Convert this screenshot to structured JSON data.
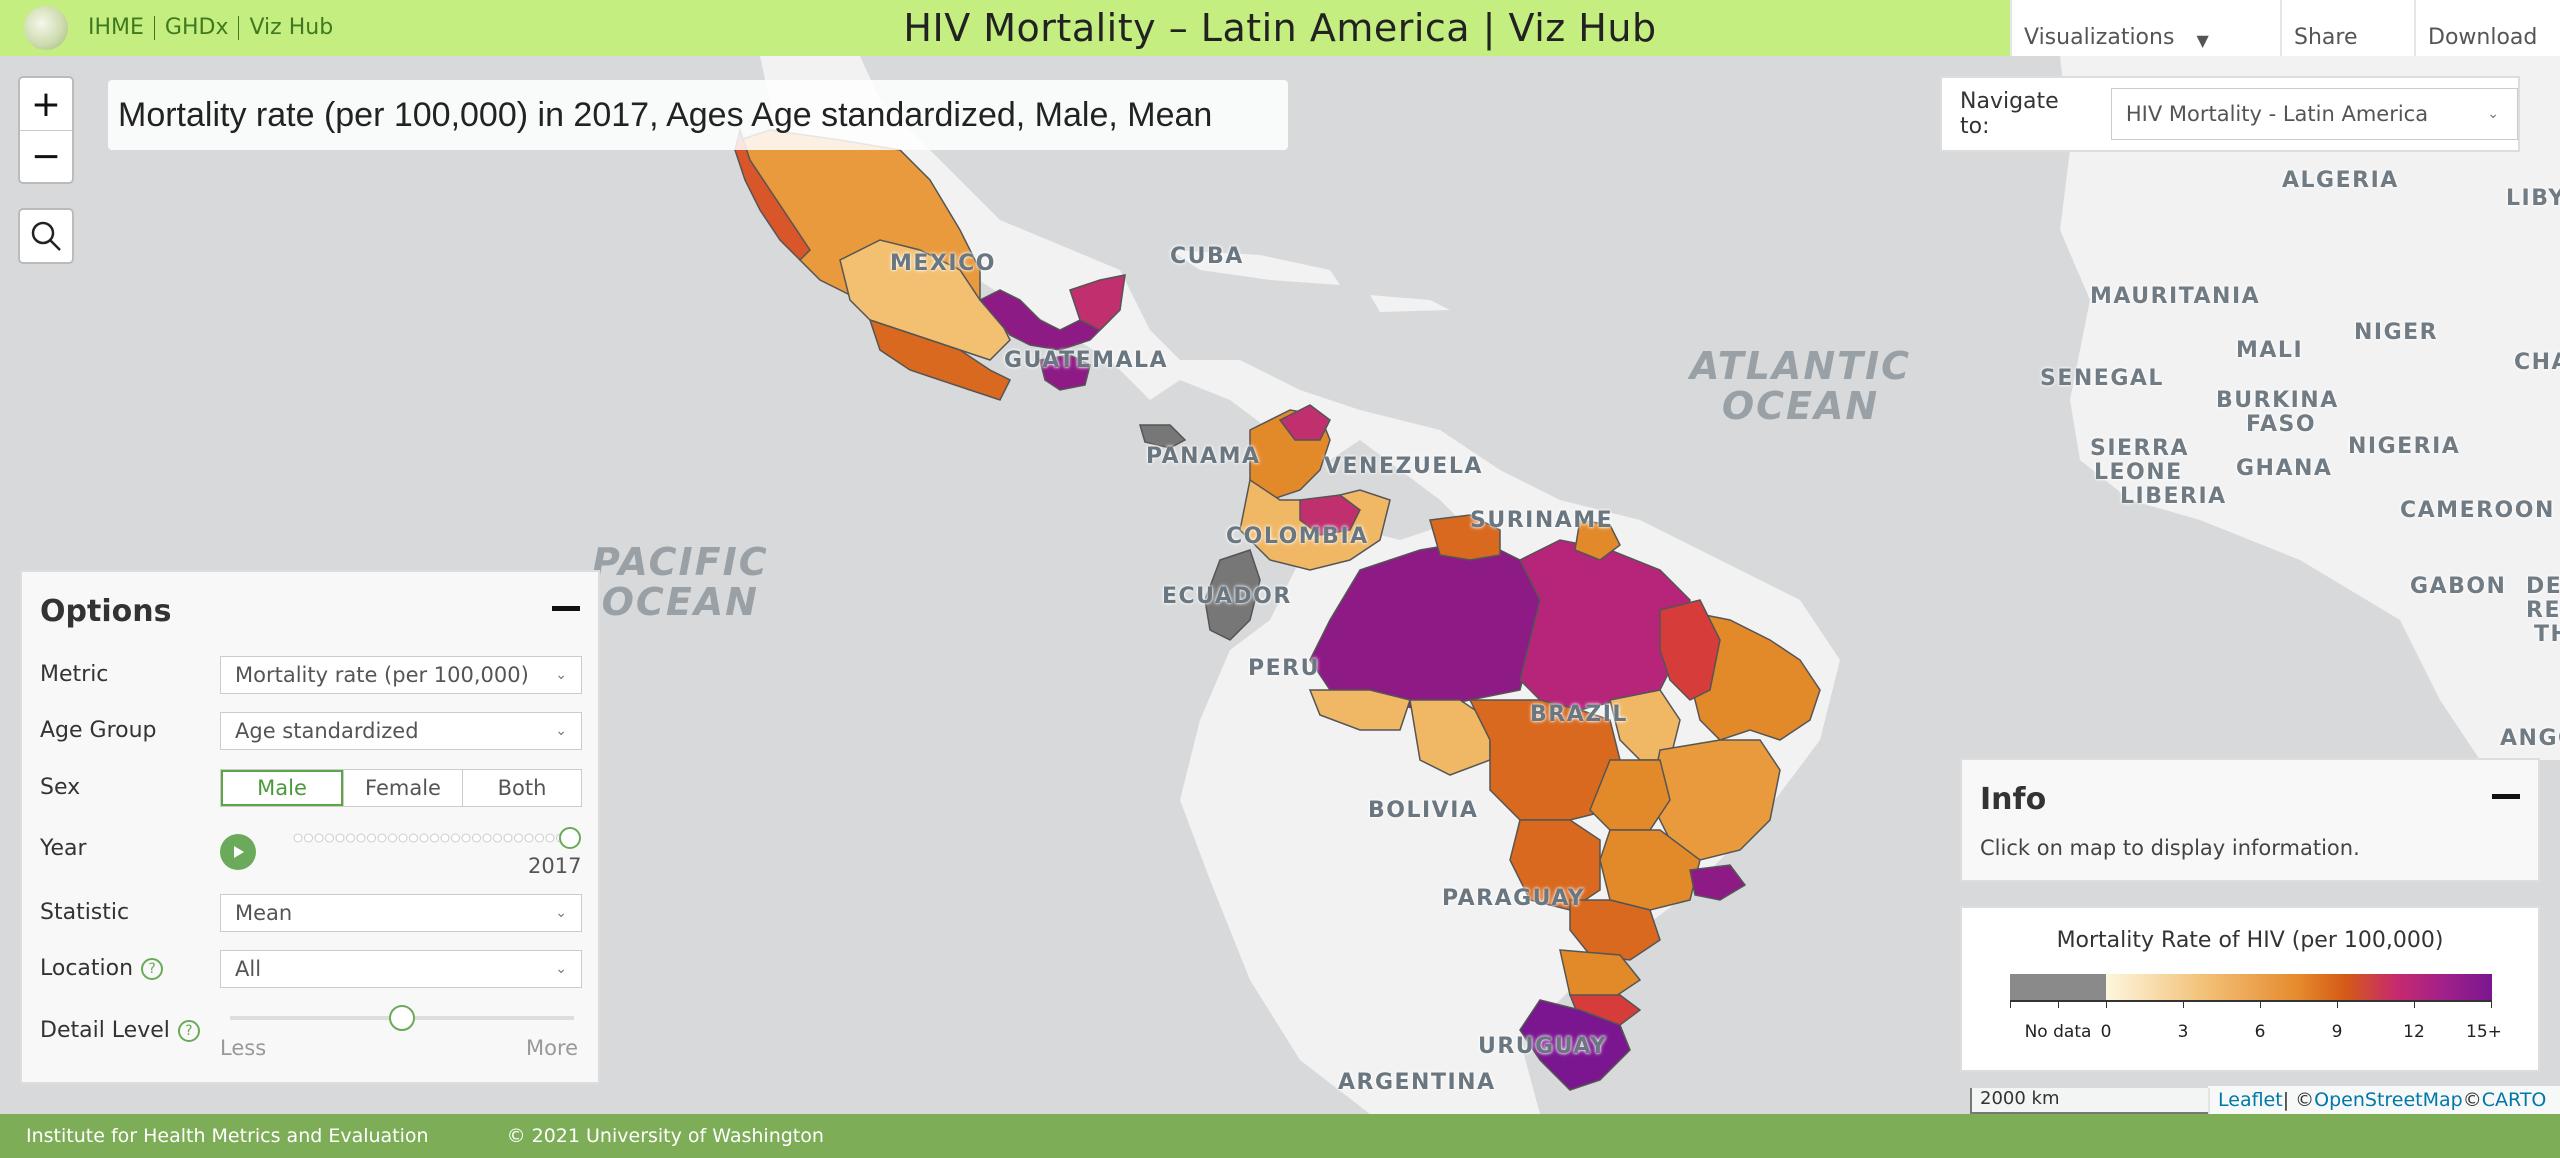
{
  "header": {
    "title": "HIV Mortality – Latin America | Viz Hub",
    "links": [
      "IHME",
      "GHDx",
      "Viz Hub"
    ],
    "visualizations_label": "Visualizations",
    "share_label": "Share",
    "download_label": "Download"
  },
  "map": {
    "title": "Mortality rate (per 100,000) in 2017, Ages Age standardized, Male, Mean",
    "zoom_in": "+",
    "zoom_out": "−",
    "country_labels": [
      "MEXICO",
      "CUBA",
      "GUATEMALA",
      "PANAMA",
      "VENEZUELA",
      "COLOMBIA",
      "SURINAME",
      "ECUADOR",
      "PERU",
      "BRAZIL",
      "BOLIVIA",
      "PARAGUAY",
      "URUGUAY",
      "ARGENTINA"
    ],
    "africa_labels": [
      "ALGERIA",
      "LIBY",
      "MAURITANIA",
      "MALI",
      "NIGER",
      "SENEGAL",
      "BURKINA",
      "FASO",
      "CHA",
      "SIERRA",
      "LEONE",
      "GHANA",
      "NIGERIA",
      "LIBERIA",
      "CAMEROON",
      "GABON",
      "DE",
      "RE",
      "TH",
      "ANGO"
    ],
    "oceans": {
      "atlantic_1": "Atlantic",
      "atlantic_2": "Ocean",
      "pacific_1": "Pacific",
      "pacific_2": "Ocean"
    }
  },
  "navigate": {
    "label": "Navigate to:",
    "value": "HIV Mortality - Latin America"
  },
  "options": {
    "title": "Options",
    "metric_label": "Metric",
    "metric_value": "Mortality rate (per 100,000)",
    "age_label": "Age Group",
    "age_value": "Age standardized",
    "sex_label": "Sex",
    "sex_options": [
      "Male",
      "Female",
      "Both"
    ],
    "sex_selected": "Male",
    "year_label": "Year",
    "year_value": "2017",
    "statistic_label": "Statistic",
    "statistic_value": "Mean",
    "location_label": "Location",
    "location_value": "All",
    "detail_label": "Detail Level",
    "detail_less": "Less",
    "detail_more": "More",
    "detail_level": 0.5,
    "help_glyph": "?"
  },
  "info": {
    "title": "Info",
    "text": "Click on map to display information."
  },
  "legend": {
    "title": "Mortality Rate of HIV (per 100,000)",
    "nodata_label": "No data",
    "ticks": [
      "0",
      "3",
      "6",
      "9",
      "12",
      "15+"
    ],
    "colors": {
      "nodata": "#8a8a8a",
      "low": "#fdf6dd",
      "mid": "#e58a2c",
      "high": "#7a1690"
    }
  },
  "scale": "2000 km",
  "attribution": {
    "leaflet": "Leaflet",
    "sep1": " | © ",
    "osm": "OpenStreetMap",
    "sep2": " © ",
    "carto": "CARTO"
  },
  "footer": {
    "org": "Institute for Health Metrics and Evaluation",
    "copyright": "© 2021 University of Washington"
  }
}
